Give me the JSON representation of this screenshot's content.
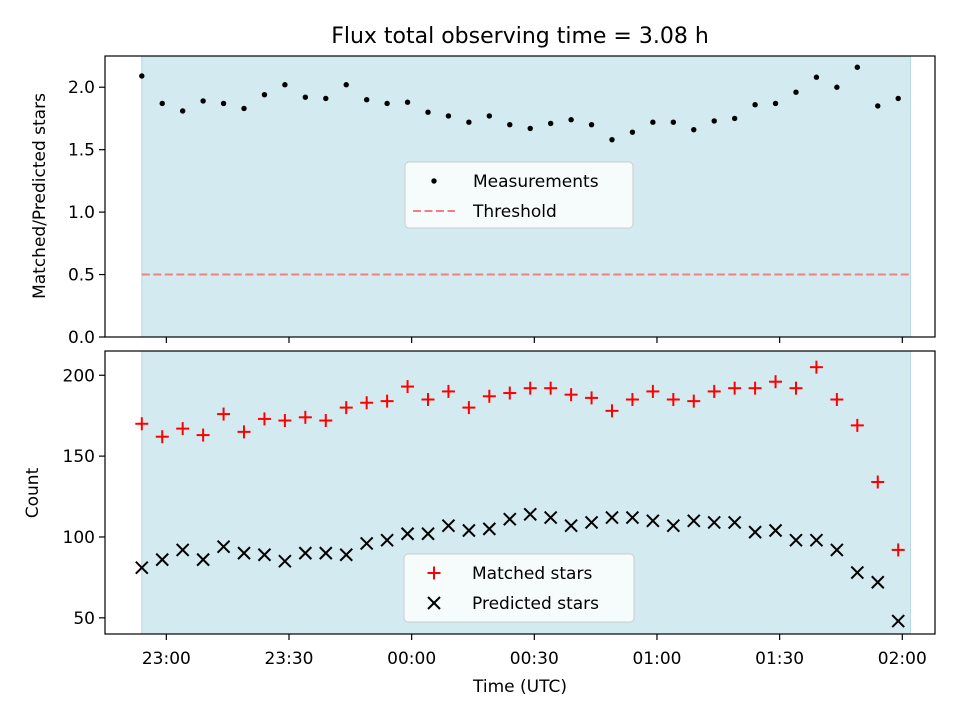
{
  "title": "Flux total observing time = 3.08 h",
  "colors": {
    "band": "#d3eaf0",
    "band_edge": "#b4d8e2",
    "measurement": "#000000",
    "threshold": "#f08080",
    "matched": "#ff0000",
    "predicted": "#000000"
  },
  "chart_data": [
    {
      "type": "scatter",
      "ylabel": "Matched/Predicted stars",
      "ylim": [
        0,
        2.25
      ],
      "yticks": [
        0.0,
        0.5,
        1.0,
        1.5,
        2.0
      ],
      "ytick_labels": [
        "0.0",
        "0.5",
        "1.0",
        "1.5",
        "2.0"
      ],
      "xlim": [
        "22:45",
        "02:08"
      ],
      "shaded_span": [
        "22:54",
        "02:02"
      ],
      "legend_position": "center",
      "threshold": {
        "name": "Threshold",
        "value": 0.5
      },
      "series": [
        {
          "name": "Measurements",
          "x": [
            "22:54",
            "22:59",
            "23:04",
            "23:09",
            "23:14",
            "23:19",
            "23:24",
            "23:29",
            "23:34",
            "23:39",
            "23:44",
            "23:49",
            "23:54",
            "23:59",
            "24:04",
            "24:09",
            "24:14",
            "24:19",
            "24:24",
            "24:29",
            "24:34",
            "24:39",
            "24:44",
            "24:49",
            "24:54",
            "24:59",
            "25:04",
            "25:09",
            "25:14",
            "25:19",
            "25:24",
            "25:29",
            "25:34",
            "25:39",
            "25:44",
            "25:49",
            "25:54",
            "25:59"
          ],
          "y": [
            2.09,
            1.87,
            1.81,
            1.89,
            1.87,
            1.83,
            1.94,
            2.02,
            1.92,
            1.91,
            2.02,
            1.9,
            1.87,
            1.88,
            1.8,
            1.77,
            1.72,
            1.77,
            1.7,
            1.67,
            1.71,
            1.74,
            1.7,
            1.58,
            1.64,
            1.72,
            1.72,
            1.66,
            1.73,
            1.75,
            1.86,
            1.87,
            1.96,
            2.08,
            2.0,
            2.16,
            1.85,
            1.91
          ]
        }
      ]
    },
    {
      "type": "scatter",
      "xlabel": "Time (UTC)",
      "ylabel": "Count",
      "ylim": [
        40,
        215
      ],
      "yticks": [
        50,
        100,
        150,
        200
      ],
      "ytick_labels": [
        "50",
        "100",
        "150",
        "200"
      ],
      "xticks": [
        "23:00",
        "23:30",
        "00:00",
        "00:30",
        "01:00",
        "01:30",
        "02:00"
      ],
      "shaded_span": [
        "22:54",
        "02:02"
      ],
      "legend_position": "lower center",
      "series": [
        {
          "name": "Matched stars",
          "x": [
            "22:54",
            "22:59",
            "23:04",
            "23:09",
            "23:14",
            "23:19",
            "23:24",
            "23:29",
            "23:34",
            "23:39",
            "23:44",
            "23:49",
            "23:54",
            "23:59",
            "24:04",
            "24:09",
            "24:14",
            "24:19",
            "24:24",
            "24:29",
            "24:34",
            "24:39",
            "24:44",
            "24:49",
            "24:54",
            "24:59",
            "25:04",
            "25:09",
            "25:14",
            "25:19",
            "25:24",
            "25:29",
            "25:34",
            "25:39",
            "25:44",
            "25:49",
            "25:54",
            "25:59"
          ],
          "y": [
            170,
            162,
            167,
            163,
            176,
            165,
            173,
            172,
            174,
            172,
            180,
            183,
            184,
            193,
            185,
            190,
            180,
            187,
            189,
            192,
            192,
            188,
            186,
            178,
            185,
            190,
            185,
            184,
            190,
            192,
            192,
            196,
            192,
            205,
            185,
            169,
            134,
            92
          ]
        },
        {
          "name": "Predicted stars",
          "x": [
            "22:54",
            "22:59",
            "23:04",
            "23:09",
            "23:14",
            "23:19",
            "23:24",
            "23:29",
            "23:34",
            "23:39",
            "23:44",
            "23:49",
            "23:54",
            "23:59",
            "24:04",
            "24:09",
            "24:14",
            "24:19",
            "24:24",
            "24:29",
            "24:34",
            "24:39",
            "24:44",
            "24:49",
            "24:54",
            "24:59",
            "25:04",
            "25:09",
            "25:14",
            "25:19",
            "25:24",
            "25:29",
            "25:34",
            "25:39",
            "25:44",
            "25:49",
            "25:54",
            "25:59"
          ],
          "y": [
            81,
            86,
            92,
            86,
            94,
            90,
            89,
            85,
            90,
            90,
            89,
            96,
            98,
            102,
            102,
            107,
            104,
            105,
            111,
            114,
            112,
            107,
            109,
            112,
            112,
            110,
            107,
            110,
            109,
            109,
            103,
            104,
            98,
            98,
            92,
            78,
            72,
            48
          ]
        }
      ]
    }
  ]
}
